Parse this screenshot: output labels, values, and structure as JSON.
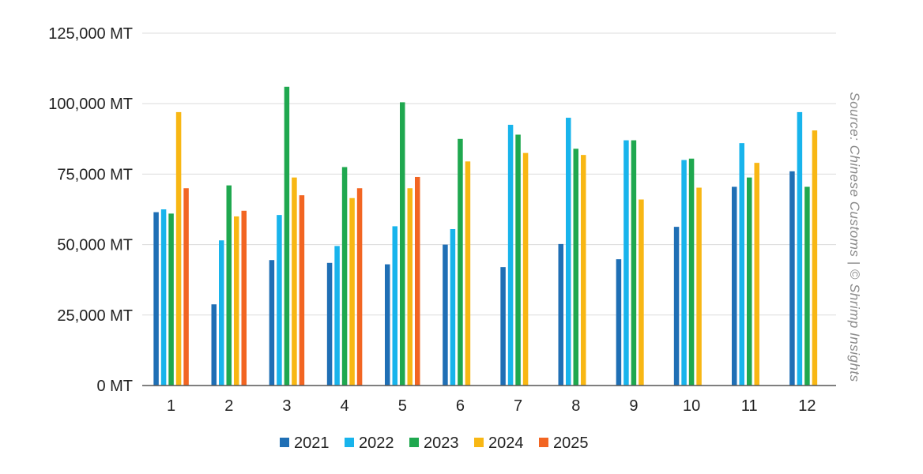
{
  "chart_data": {
    "type": "bar",
    "categories": [
      "1",
      "2",
      "3",
      "4",
      "5",
      "6",
      "7",
      "8",
      "9",
      "10",
      "11",
      "12"
    ],
    "series": [
      {
        "name": "2021",
        "color": "#1f6fb5",
        "values": [
          61500,
          28800,
          44500,
          43500,
          43000,
          50000,
          42000,
          50200,
          44800,
          56300,
          70500,
          76000
        ]
      },
      {
        "name": "2022",
        "color": "#18b4ec",
        "values": [
          62500,
          51500,
          60500,
          49500,
          56500,
          55500,
          92500,
          95000,
          87000,
          80000,
          86000,
          97000
        ]
      },
      {
        "name": "2023",
        "color": "#1fa84f",
        "values": [
          61000,
          71000,
          106000,
          77500,
          100500,
          87500,
          89000,
          84000,
          87000,
          80500,
          73800,
          70500
        ]
      },
      {
        "name": "2024",
        "color": "#f8b714",
        "values": [
          97000,
          60000,
          73800,
          66500,
          70000,
          79500,
          82500,
          81800,
          66000,
          70200,
          79000,
          90500
        ]
      },
      {
        "name": "2025",
        "color": "#f26522",
        "values": [
          70000,
          62000,
          67500,
          70000,
          74000,
          null,
          null,
          null,
          null,
          null,
          null,
          null
        ]
      }
    ],
    "ylim": [
      0,
      125000
    ],
    "y_ticks": [
      0,
      25000,
      50000,
      75000,
      100000,
      125000
    ],
    "y_tick_labels": [
      "0 MT",
      "25,000 MT",
      "50,000 MT",
      "75,000 MT",
      "100,000 MT",
      "125,000 MT"
    ],
    "grid": true,
    "legend_position": "bottom",
    "source_note": "Source: Chinese Customs | © Shrimp Insights"
  }
}
